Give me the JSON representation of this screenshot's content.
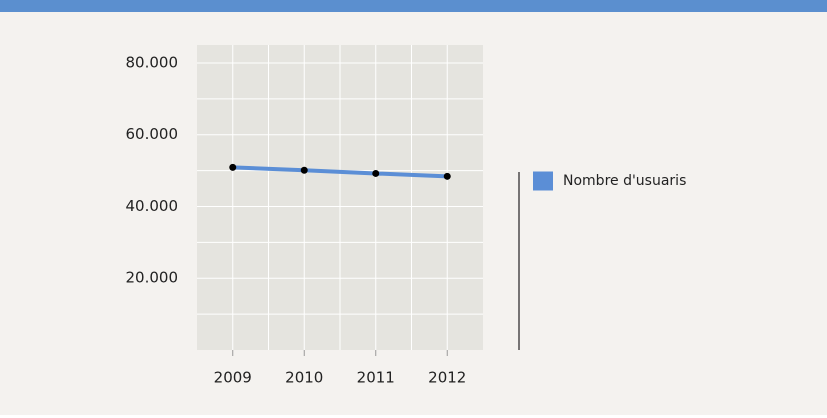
{
  "chart_data": {
    "type": "line",
    "categories": [
      "2009",
      "2010",
      "2011",
      "2012"
    ],
    "series": [
      {
        "name": "Nombre d'usuaris",
        "color": "#5b8ed6",
        "values": [
          50900,
          50100,
          49200,
          48400
        ]
      }
    ],
    "ylim": [
      0,
      85000
    ],
    "yticks": [
      {
        "value": 20000,
        "label": "20.000"
      },
      {
        "value": 40000,
        "label": "40.000"
      },
      {
        "value": 60000,
        "label": "60.000"
      },
      {
        "value": 80000,
        "label": "80.000"
      }
    ],
    "y_minor_ticks": [
      10000,
      30000,
      50000,
      70000
    ],
    "grid": true
  }
}
